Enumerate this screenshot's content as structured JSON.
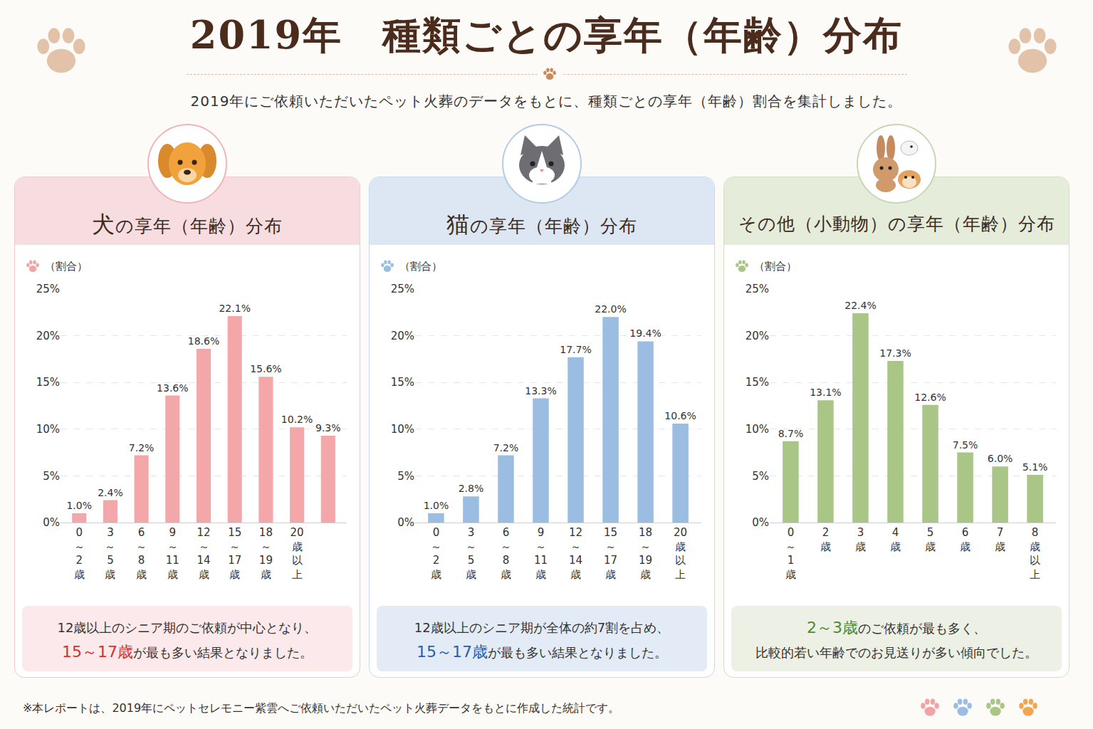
{
  "title": "2019年　種類ごとの享年（年齢）分布",
  "subtitle": "2019年にご依頼いただいたペット火葬のデータをもとに、種類ごとの享年（年齢）割合を集計しました。",
  "footnote": "※本レポートは、2019年にペットセレモニー紫雲へご依頼いただいたペット火葬データをもとに作成した統計です。",
  "panels": [
    {
      "heading": [
        "犬",
        "の享年（年齢）分布"
      ],
      "accent": "#d9302c",
      "note": [
        [
          {
            "text": "12歳以上のシニア期のご依頼が中心となり、"
          }
        ],
        [
          {
            "text": "15～17歳",
            "emphasis": true
          },
          {
            "text": "が最も多い結果となりました。"
          }
        ]
      ]
    },
    {
      "heading": [
        "猫",
        "の享年（年齢）分布"
      ],
      "accent": "#2a5db0",
      "note": [
        [
          {
            "text": "12歳以上のシニア期が全体の約7割を占め、"
          }
        ],
        [
          {
            "text": "15～17歳",
            "emphasis": true
          },
          {
            "text": "が最も多い結果となりました。"
          }
        ]
      ]
    },
    {
      "heading": [
        "その他（小動物）の享年（年齢）分布"
      ],
      "accent": "#4d8a2e",
      "note": [
        [
          {
            "text": "2～3歳",
            "emphasis": true
          },
          {
            "text": "のご依頼が最も多く、"
          }
        ],
        [
          {
            "text": "比較的若い年齢でのお見送りが多い傾向でした。"
          }
        ]
      ]
    }
  ],
  "chart_data": [
    {
      "type": "bar",
      "ylabel": "（割合）",
      "categories": [
        "0～2歳",
        "3～5歳",
        "6～8歳",
        "9～11歳",
        "12～14歳",
        "15～17歳",
        "18～19歳",
        "20歳以上",
        null
      ],
      "values": [
        1.0,
        2.4,
        7.2,
        13.6,
        18.6,
        22.1,
        15.6,
        10.2,
        9.3
      ],
      "value_labels": [
        "1.0%",
        "2.4%",
        "7.2%",
        "13.6%",
        "18.6%",
        "22.1%",
        "15.6%",
        "10.2%",
        "9.3%"
      ],
      "color": "#f3a7a8",
      "ylim": [
        0,
        25
      ],
      "yticks": [
        {
          "value": 0,
          "label": "0%"
        },
        {
          "value": 5,
          "label": "5%"
        },
        {
          "value": 10,
          "label": "10%"
        },
        {
          "value": 15,
          "label": "15%"
        },
        {
          "value": 20,
          "label": "20%"
        },
        {
          "value": 25,
          "label": "25%"
        }
      ],
      "grid": true,
      "data_labels": true
    },
    {
      "type": "bar",
      "ylabel": "（割合）",
      "categories": [
        "0～2歳",
        "3～5歳",
        "6～8歳",
        "9～11歳",
        "12～14歳",
        "15～17歳",
        "18～19歳",
        "20歳以上"
      ],
      "values": [
        1.0,
        2.8,
        7.2,
        13.3,
        17.7,
        22.0,
        19.4,
        10.6
      ],
      "value_labels": [
        "1.0%",
        "2.8%",
        "7.2%",
        "13.3%",
        "17.7%",
        "22.0%",
        "19.4%",
        "10.6%"
      ],
      "color": "#9cbde2",
      "ylim": [
        0,
        25
      ],
      "yticks": [
        {
          "value": 0,
          "label": "0%"
        },
        {
          "value": 5,
          "label": "5%"
        },
        {
          "value": 10,
          "label": "10%"
        },
        {
          "value": 15,
          "label": "15%"
        },
        {
          "value": 20,
          "label": "20%"
        },
        {
          "value": 25,
          "label": "25%"
        }
      ],
      "grid": true,
      "data_labels": true
    },
    {
      "type": "bar",
      "ylabel": "（割合）",
      "categories": [
        "0～1歳",
        "2歳",
        "3歳",
        "4歳",
        "5歳",
        "6歳",
        "7歳",
        "8歳以上"
      ],
      "values": [
        8.7,
        13.1,
        22.4,
        17.3,
        12.6,
        7.5,
        6.0,
        5.1
      ],
      "value_labels": [
        "8.7%",
        "13.1%",
        "22.4%",
        "17.3%",
        "12.6%",
        "7.5%",
        "6.0%",
        "5.1%"
      ],
      "color": "#a9c687",
      "ylim": [
        0,
        25
      ],
      "yticks": [
        {
          "value": 0,
          "label": "0%"
        },
        {
          "value": 5,
          "label": "5%"
        },
        {
          "value": 10,
          "label": "10%"
        },
        {
          "value": 15,
          "label": "15%"
        },
        {
          "value": 20,
          "label": "20%"
        },
        {
          "value": 25,
          "label": "25%"
        }
      ],
      "grid": true,
      "data_labels": true
    }
  ]
}
